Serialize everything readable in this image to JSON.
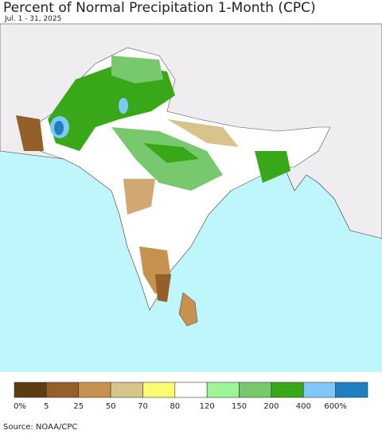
{
  "header": {
    "title": "Percent of Normal Precipitation 1-Month (CPC)",
    "subtitle": "Jul. 1 - 31, 2025"
  },
  "legend": {
    "labels": [
      "0%",
      "5",
      "25",
      "50",
      "70",
      "80",
      "120",
      "150",
      "200",
      "400",
      "600%"
    ],
    "colors": [
      "#5c3d12",
      "#93602a",
      "#c7924f",
      "#d6c48c",
      "#fbfb73",
      "#ffffff",
      "#9ef597",
      "#78c96e",
      "#38a818",
      "#80c8f8",
      "#1f7fc0"
    ]
  },
  "source": "Source: NOAA/CPC"
}
